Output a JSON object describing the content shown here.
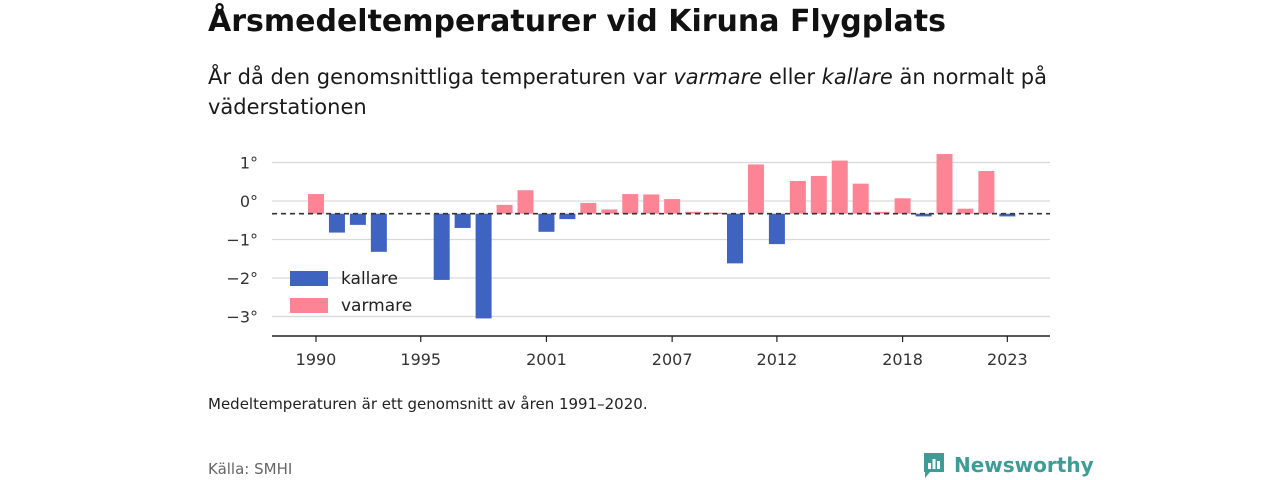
{
  "header": {
    "title": "Årsmedeltemperaturer vid Kiruna Flygplats",
    "subtitle_pre": "År då den genomsnittliga temperaturen var ",
    "subtitle_warm": "varmare",
    "subtitle_mid": " eller ",
    "subtitle_cold": "kallare",
    "subtitle_post": " än normalt på väderstationen"
  },
  "chart_data": {
    "type": "bar",
    "baseline": -0.33,
    "baseline_style": "dashed",
    "ylim": [
      -3.5,
      1.5
    ],
    "yticks": [
      1,
      0,
      -1,
      -2,
      -3
    ],
    "ytick_labels": [
      "1°",
      "0°",
      "−1°",
      "−2°",
      "−3°"
    ],
    "xtick_years": [
      1990,
      1995,
      2001,
      2007,
      2012,
      2018,
      2023
    ],
    "grid": true,
    "legend": {
      "position": "bottom-left",
      "entries": [
        {
          "label": "kallare",
          "color": "#3f63c1"
        },
        {
          "label": "varmare",
          "color": "#fd8494"
        }
      ]
    },
    "years": [
      1990,
      1991,
      1992,
      1993,
      1994,
      1995,
      1996,
      1997,
      1998,
      1999,
      2000,
      2001,
      2002,
      2003,
      2004,
      2005,
      2006,
      2007,
      2008,
      2009,
      2010,
      2011,
      2012,
      2013,
      2014,
      2015,
      2016,
      2017,
      2018,
      2019,
      2020,
      2021,
      2022,
      2023
    ],
    "values": [
      0.18,
      -0.82,
      -0.62,
      -1.32,
      null,
      null,
      -2.05,
      -0.7,
      -3.05,
      -0.1,
      0.28,
      -0.8,
      -0.47,
      -0.05,
      -0.22,
      0.18,
      0.17,
      0.05,
      -0.28,
      -0.3,
      -1.62,
      0.95,
      -1.12,
      0.52,
      0.65,
      1.05,
      0.45,
      -0.28,
      0.07,
      -0.4,
      1.22,
      -0.2,
      0.78,
      -0.4
    ]
  },
  "footer": {
    "note": "Medeltemperaturen är ett genomsnitt av åren 1991–2020.",
    "source": "Källa: SMHI",
    "brand": "Newsworthy"
  },
  "colors": {
    "cold": "#3f63c1",
    "warm": "#fd8494",
    "brand": "#3e9c97",
    "grid": "#d9d9d9"
  }
}
